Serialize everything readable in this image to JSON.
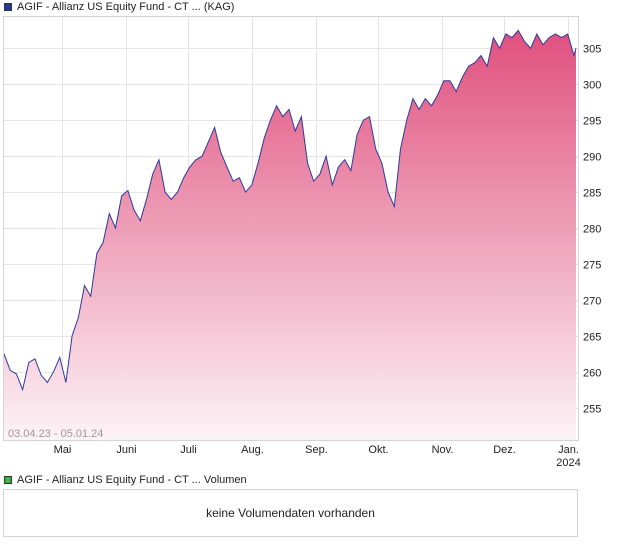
{
  "legend": {
    "price_label": "AGIF - Allianz US Equity Fund - CT ... (KAG)",
    "price_color": "#1f3a93",
    "volume_label": "AGIF - Allianz US Equity Fund - CT ... Volumen",
    "volume_color": "#3cb043"
  },
  "volume_panel": {
    "message": "keine Volumendaten vorhanden"
  },
  "chart_data": {
    "type": "area",
    "date_range": "03.04.23 - 05.01.24",
    "line_color": "#2b3a9c",
    "fill_top_color": "#e0507e",
    "fill_bottom_color": "#fdf3f7",
    "grid": true,
    "ylim": [
      250.5,
      309.5
    ],
    "y_ticks": [
      255,
      260,
      265,
      270,
      275,
      280,
      285,
      290,
      295,
      300,
      305
    ],
    "x_ticks": [
      {
        "label": "Mai",
        "date": "2023-05-01"
      },
      {
        "label": "Juni",
        "date": "2023-06-01"
      },
      {
        "label": "Juli",
        "date": "2023-07-01"
      },
      {
        "label": "Aug.",
        "date": "2023-08-01"
      },
      {
        "label": "Sep.",
        "date": "2023-09-01"
      },
      {
        "label": "Okt.",
        "date": "2023-10-01"
      },
      {
        "label": "Nov.",
        "date": "2023-11-01"
      },
      {
        "label": "Dez.",
        "date": "2023-12-01"
      },
      {
        "label": "Jan.",
        "sublabel": "2024",
        "date": "2024-01-01"
      }
    ],
    "x": [
      "2023-04-03",
      "2023-04-06",
      "2023-04-09",
      "2023-04-12",
      "2023-04-15",
      "2023-04-18",
      "2023-04-21",
      "2023-04-24",
      "2023-04-27",
      "2023-04-30",
      "2023-05-03",
      "2023-05-06",
      "2023-05-09",
      "2023-05-12",
      "2023-05-15",
      "2023-05-18",
      "2023-05-21",
      "2023-05-24",
      "2023-05-27",
      "2023-05-30",
      "2023-06-02",
      "2023-06-05",
      "2023-06-08",
      "2023-06-11",
      "2023-06-14",
      "2023-06-17",
      "2023-06-20",
      "2023-06-23",
      "2023-06-26",
      "2023-06-29",
      "2023-07-02",
      "2023-07-05",
      "2023-07-08",
      "2023-07-11",
      "2023-07-14",
      "2023-07-17",
      "2023-07-20",
      "2023-07-23",
      "2023-07-26",
      "2023-07-29",
      "2023-08-01",
      "2023-08-04",
      "2023-08-07",
      "2023-08-10",
      "2023-08-13",
      "2023-08-16",
      "2023-08-19",
      "2023-08-22",
      "2023-08-25",
      "2023-08-28",
      "2023-08-31",
      "2023-09-03",
      "2023-09-06",
      "2023-09-09",
      "2023-09-12",
      "2023-09-15",
      "2023-09-18",
      "2023-09-21",
      "2023-09-24",
      "2023-09-27",
      "2023-09-30",
      "2023-10-03",
      "2023-10-06",
      "2023-10-09",
      "2023-10-12",
      "2023-10-15",
      "2023-10-18",
      "2023-10-21",
      "2023-10-24",
      "2023-10-27",
      "2023-10-30",
      "2023-11-02",
      "2023-11-05",
      "2023-11-08",
      "2023-11-11",
      "2023-11-14",
      "2023-11-17",
      "2023-11-20",
      "2023-11-23",
      "2023-11-26",
      "2023-11-29",
      "2023-12-02",
      "2023-12-05",
      "2023-12-08",
      "2023-12-11",
      "2023-12-14",
      "2023-12-17",
      "2023-12-20",
      "2023-12-23",
      "2023-12-26",
      "2023-12-29",
      "2024-01-01",
      "2024-01-04",
      "2024-01-05"
    ],
    "series": [
      {
        "values": [
          262.5,
          260.2,
          259.7,
          257.5,
          261.3,
          261.8,
          259.5,
          258.5,
          260.0,
          262.0,
          258.5,
          265.0,
          267.5,
          272.0,
          270.5,
          276.5,
          278.0,
          282.0,
          280.0,
          284.5,
          285.2,
          282.5,
          281.0,
          284.0,
          287.5,
          289.5,
          285.0,
          284.0,
          285.0,
          287.0,
          288.5,
          289.5,
          290.0,
          292.0,
          294.0,
          290.5,
          288.5,
          286.5,
          287.0,
          285.0,
          286.0,
          289.0,
          292.5,
          295.0,
          297.0,
          295.5,
          296.5,
          293.5,
          295.5,
          289.0,
          286.5,
          287.5,
          290.0,
          286.0,
          288.5,
          289.5,
          288.0,
          293.0,
          295.0,
          295.5,
          291.0,
          289.0,
          285.0,
          283.0,
          291.0,
          295.0,
          298.0,
          296.5,
          298.0,
          297.0,
          298.5,
          300.5,
          300.5,
          299.0,
          301.0,
          302.5,
          303.0,
          304.0,
          302.5,
          306.5,
          305.0,
          307.0,
          306.5,
          307.5,
          306.0,
          305.0,
          307.0,
          305.5,
          306.5,
          307.0,
          306.5,
          307.0,
          304.0,
          305.0
        ]
      }
    ]
  }
}
